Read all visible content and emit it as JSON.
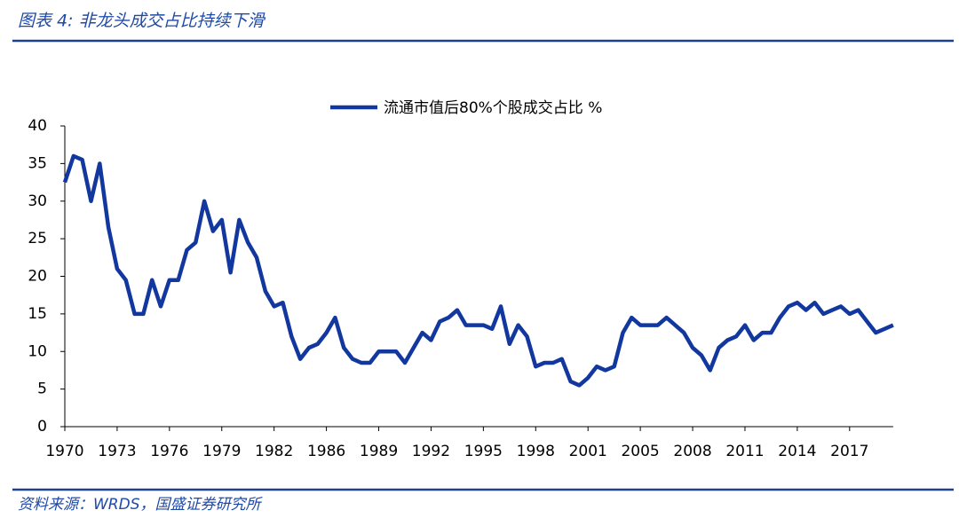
{
  "header": {
    "title": "图表 4:  非龙头成交占比持续下滑"
  },
  "footer": {
    "source": "资料来源：WRDS，国盛证券研究所"
  },
  "chart_data": {
    "type": "line",
    "categories": [
      "1970",
      null,
      null,
      null,
      null,
      null,
      "1973",
      null,
      null,
      null,
      null,
      null,
      "1976",
      null,
      null,
      null,
      null,
      null,
      "1979",
      null,
      null,
      null,
      null,
      null,
      "1982",
      null,
      null,
      null,
      null,
      null,
      "1986",
      null,
      null,
      null,
      null,
      null,
      "1989",
      null,
      null,
      null,
      null,
      null,
      "1992",
      null,
      null,
      null,
      null,
      null,
      "1995",
      null,
      null,
      null,
      null,
      null,
      "1998",
      null,
      null,
      null,
      null,
      null,
      "2001",
      null,
      null,
      null,
      null,
      null,
      "2005",
      null,
      null,
      null,
      null,
      null,
      "2008",
      null,
      null,
      null,
      null,
      null,
      "2011",
      null,
      null,
      null,
      null,
      null,
      "2014",
      null,
      null,
      null,
      null,
      null,
      "2017",
      null,
      null,
      null,
      null,
      null
    ],
    "series": [
      {
        "name": "流通市值后80%个股成交占比 %",
        "color": "#1238a0",
        "values": [
          32.5,
          36,
          35.5,
          30,
          35,
          26.5,
          21,
          19.5,
          15,
          15,
          19.5,
          16,
          19.5,
          19.5,
          23.5,
          24.5,
          30,
          26,
          27.5,
          20.5,
          27.5,
          24.5,
          22.5,
          18,
          16,
          16.5,
          12,
          9,
          10.5,
          11,
          12.5,
          14.5,
          10.5,
          9,
          8.5,
          8.5,
          10,
          10,
          10,
          8.5,
          10.5,
          12.5,
          11.5,
          14,
          14.5,
          15.5,
          13.5,
          13.5,
          13.5,
          13,
          16,
          11,
          13.5,
          12,
          8,
          8.5,
          8.5,
          9,
          6,
          5.5,
          6.5,
          8,
          7.5,
          8,
          12.5,
          14.5,
          13.5,
          13.5,
          13.5,
          14.5,
          13.5,
          12.5,
          10.5,
          9.5,
          7.5,
          10.5,
          11.5,
          12,
          13.5,
          11.5,
          12.5,
          12.5,
          14.5,
          16,
          16.5,
          15.5,
          16.5,
          15,
          15.5,
          16,
          15,
          15.5,
          14,
          12.5,
          13,
          13.5
        ]
      }
    ],
    "ylim": [
      0,
      40
    ],
    "yticks": [
      0,
      5,
      10,
      15,
      20,
      25,
      30,
      35,
      40
    ],
    "grid": false,
    "legend": "top"
  }
}
